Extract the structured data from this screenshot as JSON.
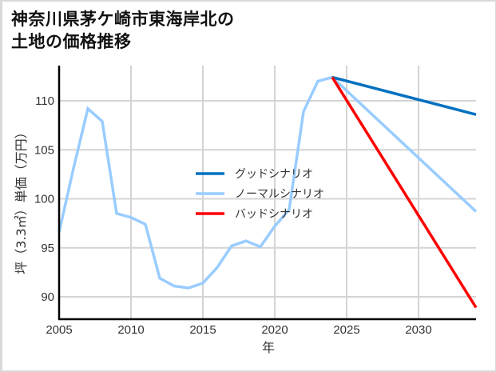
{
  "title": "神奈川県茅ケ崎市東海岸北の\n土地の価格推移",
  "chart_data": {
    "type": "line",
    "title": "神奈川県茅ケ崎市東海岸北の土地の価格推移",
    "xlabel": "年",
    "ylabel": "坪（3.3㎡）単価（万円）",
    "xlim": [
      2005,
      2034
    ],
    "ylim": [
      87.8,
      113.8
    ],
    "x_ticks": [
      2005,
      2010,
      2015,
      2020,
      2025,
      2030
    ],
    "y_ticks": [
      90,
      95,
      100,
      105,
      110
    ],
    "grid": true,
    "legend_position": "center-left inside plot",
    "series": [
      {
        "name": "グッドシナリオ",
        "color": "#0070c0",
        "x": [
          2024,
          2034
        ],
        "values": [
          112.4,
          108.6
        ]
      },
      {
        "name": "ノーマルシナリオ",
        "color": "#99ccff",
        "x": [
          2005,
          2006,
          2007,
          2008,
          2009,
          2010,
          2011,
          2012,
          2013,
          2014,
          2015,
          2016,
          2017,
          2018,
          2019,
          2020,
          2021,
          2022,
          2023,
          2024,
          2034
        ],
        "values": [
          96.6,
          103.1,
          109.2,
          107.9,
          98.5,
          98.1,
          97.4,
          91.9,
          91.1,
          90.9,
          91.4,
          93.0,
          95.2,
          95.7,
          95.1,
          97.2,
          98.9,
          108.9,
          112.0,
          112.4,
          98.7
        ]
      },
      {
        "name": "バッドシナリオ",
        "color": "#ff0000",
        "x": [
          2024,
          2034
        ],
        "values": [
          112.4,
          88.9
        ]
      }
    ]
  }
}
